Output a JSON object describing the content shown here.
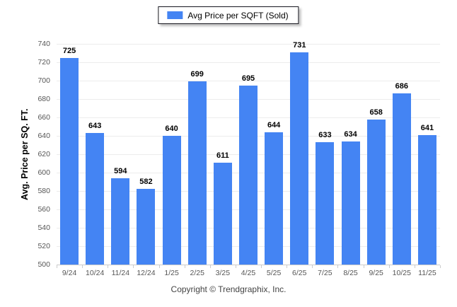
{
  "legend": {
    "label": "Avg Price per SQFT (Sold)",
    "swatch_color": "#4484f3"
  },
  "footer": {
    "copyright": "Copyright © Trendgraphix, Inc."
  },
  "chart_data": {
    "type": "bar",
    "title": "",
    "series_name": "Avg Price per SQFT (Sold)",
    "categories": [
      "9/24",
      "10/24",
      "11/24",
      "12/24",
      "1/25",
      "2/25",
      "3/25",
      "4/25",
      "5/25",
      "6/25",
      "7/25",
      "8/25",
      "9/25",
      "10/25",
      "11/25"
    ],
    "values": [
      725,
      643,
      594,
      582,
      640,
      699,
      611,
      695,
      644,
      731,
      633,
      634,
      658,
      686,
      641
    ],
    "xlabel": "",
    "ylabel": "Avg. Price per SQ. FT.",
    "ylim": [
      500,
      740
    ],
    "yticks": [
      500,
      520,
      540,
      560,
      580,
      600,
      620,
      640,
      660,
      680,
      700,
      720,
      740
    ],
    "grid": "horizontal",
    "legend_position": "top",
    "bar_color": "#4484f3"
  }
}
